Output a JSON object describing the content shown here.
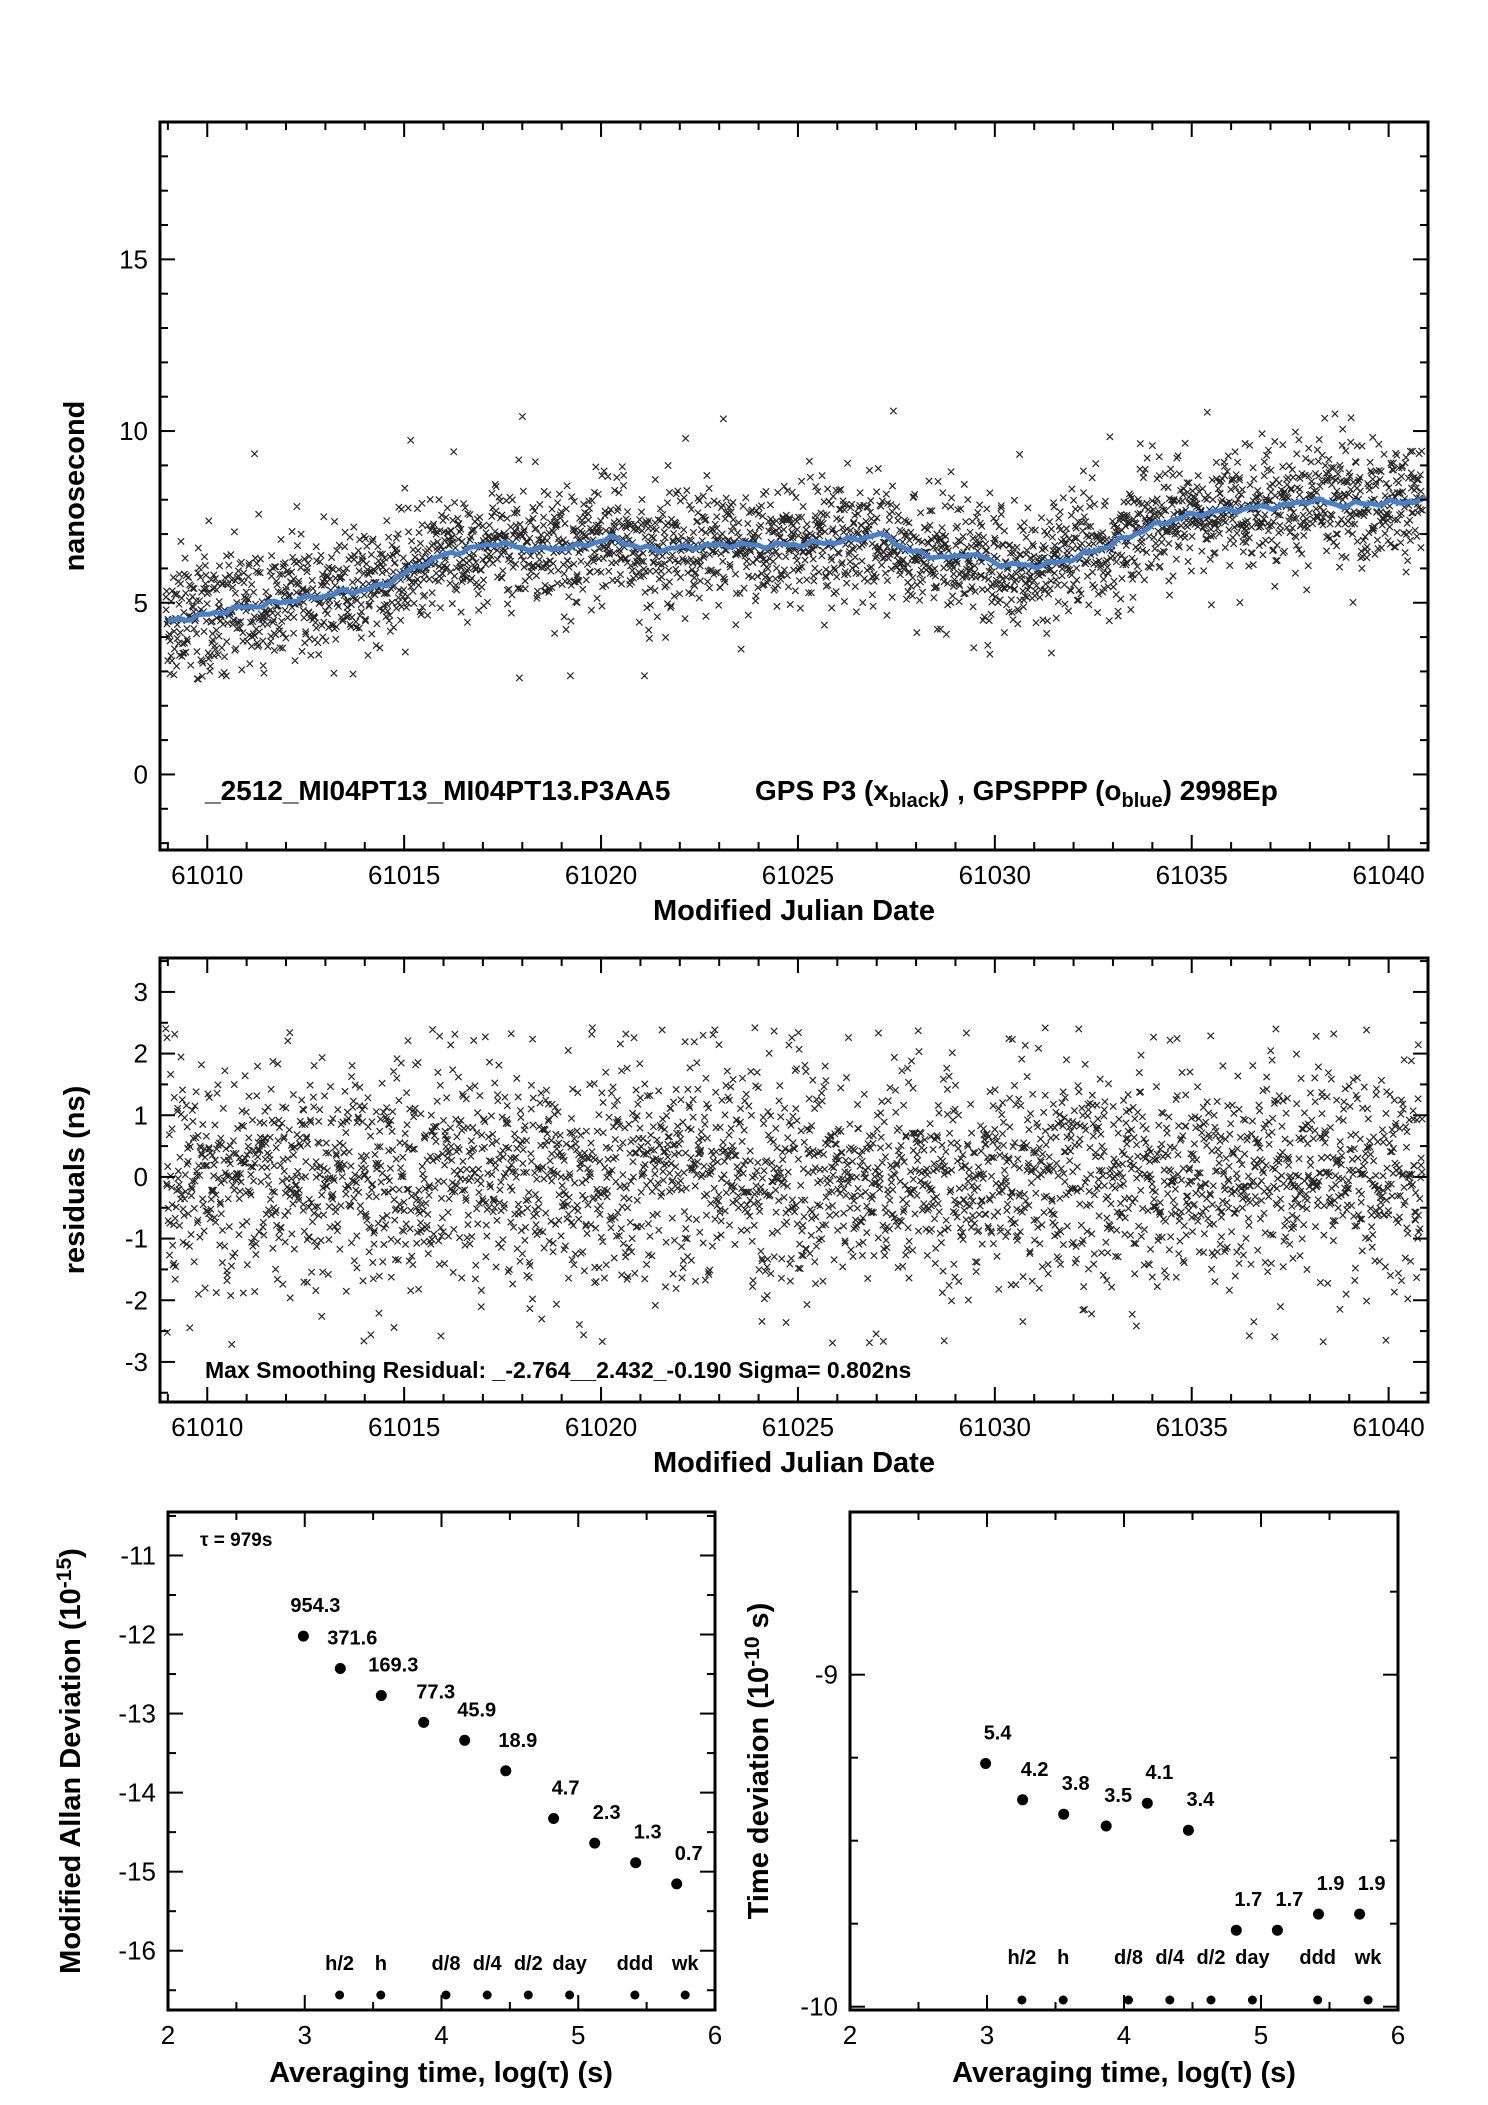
{
  "page": {
    "background": "#ffffff"
  },
  "colors": {
    "axis": "#000000",
    "scatter_marker": "#000000",
    "smoothed_line": "#4a80c8",
    "value_labels": "#ff0000",
    "deviation_dots": "#000000"
  },
  "chart_data": [
    {
      "id": "gps_comparison",
      "type": "scatter",
      "xlabel": "Modified Julian Date",
      "ylabel": "nanosecond",
      "xlim": [
        61008.8,
        61041.0
      ],
      "ylim": [
        -2.2,
        19.0
      ],
      "xticks": [
        61010,
        61015,
        61020,
        61025,
        61030,
        61035,
        61040
      ],
      "xminor_step": 1,
      "yticks": [
        0,
        5,
        10,
        15
      ],
      "yminor_step": 1,
      "annotation": {
        "dataset": "_2512_MI04PT13_MI04PT13.P3AA5",
        "series_parts": [
          {
            "text": "GPS P3 (x"
          },
          {
            "text": "black",
            "sub": true
          },
          {
            "text": ") ,  GPSPPP (o"
          },
          {
            "text": "blue",
            "sub": true
          },
          {
            "text": ")  2998Ep"
          }
        ]
      },
      "series": [
        {
          "name": "GPS P3",
          "marker": "x",
          "color": "#000000",
          "n_points": 2998,
          "sigma_ns": 0.8
        },
        {
          "name": "GPSPPP smoothed",
          "marker": "o",
          "color": "#4a80c8",
          "trend_points": [
            [
              61009.0,
              4.45
            ],
            [
              61009.5,
              4.55
            ],
            [
              61010.0,
              4.65
            ],
            [
              61010.5,
              4.78
            ],
            [
              61011.0,
              4.88
            ],
            [
              61011.5,
              4.95
            ],
            [
              61012.0,
              5.05
            ],
            [
              61012.5,
              5.12
            ],
            [
              61013.0,
              5.22
            ],
            [
              61013.5,
              5.32
            ],
            [
              61014.0,
              5.38
            ],
            [
              61014.5,
              5.52
            ],
            [
              61015.0,
              5.85
            ],
            [
              61015.5,
              6.15
            ],
            [
              61016.0,
              6.38
            ],
            [
              61016.5,
              6.52
            ],
            [
              61017.0,
              6.65
            ],
            [
              61017.3,
              6.75
            ],
            [
              61017.6,
              6.68
            ],
            [
              61018.0,
              6.6
            ],
            [
              61018.5,
              6.55
            ],
            [
              61019.0,
              6.6
            ],
            [
              61019.5,
              6.65
            ],
            [
              61020.0,
              6.82
            ],
            [
              61020.3,
              6.88
            ],
            [
              61020.7,
              6.72
            ],
            [
              61021.0,
              6.6
            ],
            [
              61021.5,
              6.55
            ],
            [
              61022.0,
              6.6
            ],
            [
              61022.5,
              6.65
            ],
            [
              61023.0,
              6.68
            ],
            [
              61023.5,
              6.7
            ],
            [
              61024.0,
              6.66
            ],
            [
              61024.5,
              6.68
            ],
            [
              61025.0,
              6.7
            ],
            [
              61025.5,
              6.74
            ],
            [
              61026.0,
              6.78
            ],
            [
              61026.5,
              6.85
            ],
            [
              61027.0,
              7.0
            ],
            [
              61027.3,
              6.88
            ],
            [
              61027.7,
              6.6
            ],
            [
              61028.0,
              6.45
            ],
            [
              61028.5,
              6.35
            ],
            [
              61029.0,
              6.3
            ],
            [
              61029.3,
              6.45
            ],
            [
              61029.7,
              6.32
            ],
            [
              61030.0,
              6.15
            ],
            [
              61030.5,
              6.1
            ],
            [
              61031.0,
              6.08
            ],
            [
              61031.5,
              6.15
            ],
            [
              61032.0,
              6.3
            ],
            [
              61032.5,
              6.5
            ],
            [
              61033.0,
              6.72
            ],
            [
              61033.5,
              6.98
            ],
            [
              61034.0,
              7.22
            ],
            [
              61034.5,
              7.42
            ],
            [
              61035.0,
              7.55
            ],
            [
              61035.5,
              7.65
            ],
            [
              61036.0,
              7.7
            ],
            [
              61036.5,
              7.75
            ],
            [
              61037.0,
              7.8
            ],
            [
              61037.5,
              7.85
            ],
            [
              61038.0,
              8.0
            ],
            [
              61038.3,
              7.95
            ],
            [
              61038.7,
              7.85
            ],
            [
              61039.0,
              7.85
            ],
            [
              61039.5,
              7.9
            ],
            [
              61040.0,
              7.9
            ],
            [
              61040.5,
              7.95
            ],
            [
              61041.0,
              8.0
            ]
          ]
        }
      ]
    },
    {
      "id": "residuals",
      "type": "scatter",
      "xlabel": "Modified Julian Date",
      "ylabel": "residuals (ns)",
      "xlim": [
        61008.8,
        61041.0
      ],
      "ylim": [
        -3.65,
        3.55
      ],
      "xticks": [
        61010,
        61015,
        61020,
        61025,
        61030,
        61035,
        61040
      ],
      "xminor_step": 1,
      "yticks": [
        -3,
        -2,
        -1,
        0,
        1,
        2,
        3
      ],
      "yminor_step": 0.5,
      "annotation": "Max Smoothing Residual: _-2.764__2.432_-0.190  Sigma= 0.802ns",
      "stats": {
        "min": -2.764,
        "max": 2.432,
        "mean": -0.19,
        "sigma_ns": 0.802
      },
      "series": [
        {
          "name": "smoothing residuals",
          "marker": "x",
          "color": "#000000",
          "n_points": 2998,
          "sigma_ns": 0.802
        }
      ]
    },
    {
      "id": "mdev",
      "type": "scatter",
      "xlabel": "Averaging time, log(τ) (s)",
      "ylabel_parts": [
        {
          "text": "Modified Allan Deviation (10"
        },
        {
          "text": "-15",
          "sup": true
        },
        {
          "text": ")"
        }
      ],
      "unit_exponent": -15,
      "xlim": [
        2,
        6
      ],
      "ylim": [
        -16.75,
        -10.45
      ],
      "xticks": [
        2,
        3,
        4,
        5,
        6
      ],
      "xminor_step": 0.5,
      "yticks": [
        -11,
        -12,
        -13,
        -14,
        -15,
        -16
      ],
      "yminor_step": 0.5,
      "tau_annotation": "τ = 979s",
      "points": [
        {
          "log_tau": 2.99,
          "value": 954.3
        },
        {
          "log_tau": 3.26,
          "value": 371.6
        },
        {
          "log_tau": 3.56,
          "value": 169.3
        },
        {
          "log_tau": 3.87,
          "value": 77.3
        },
        {
          "log_tau": 4.17,
          "value": 45.9
        },
        {
          "log_tau": 4.47,
          "value": 18.9
        },
        {
          "log_tau": 4.82,
          "value": 4.7
        },
        {
          "log_tau": 5.12,
          "value": 2.3
        },
        {
          "log_tau": 5.42,
          "value": 1.3
        },
        {
          "log_tau": 5.72,
          "value": 0.7
        }
      ],
      "time_marks": [
        {
          "label": "h/2",
          "log_tau": 3.255
        },
        {
          "label": "h",
          "log_tau": 3.556
        },
        {
          "label": "d/8",
          "log_tau": 4.033
        },
        {
          "label": "d/4",
          "log_tau": 4.334
        },
        {
          "label": "d/2",
          "log_tau": 4.635
        },
        {
          "label": "day",
          "log_tau": 4.937
        },
        {
          "label": "ddd",
          "log_tau": 5.414
        },
        {
          "label": "wk",
          "log_tau": 5.782
        }
      ]
    },
    {
      "id": "tdev",
      "type": "scatter",
      "xlabel": "Averaging time, log(τ) (s)",
      "ylabel_parts": [
        {
          "text": "Time deviation (10"
        },
        {
          "text": "-10",
          "sup": true
        },
        {
          "text": " s)"
        }
      ],
      "unit_exponent": -10,
      "xlim": [
        2,
        6
      ],
      "ylim": [
        -10.01,
        -8.51
      ],
      "xticks": [
        2,
        3,
        4,
        5,
        6
      ],
      "xminor_step": 0.5,
      "yticks": [
        -9,
        -10
      ],
      "yminor_step": 0.25,
      "points": [
        {
          "log_tau": 2.99,
          "value": 5.4
        },
        {
          "log_tau": 3.26,
          "value": 4.2
        },
        {
          "log_tau": 3.56,
          "value": 3.8
        },
        {
          "log_tau": 3.87,
          "value": 3.5
        },
        {
          "log_tau": 4.17,
          "value": 4.1
        },
        {
          "log_tau": 4.47,
          "value": 3.4
        },
        {
          "log_tau": 4.82,
          "value": 1.7
        },
        {
          "log_tau": 5.12,
          "value": 1.7
        },
        {
          "log_tau": 5.42,
          "value": 1.9
        },
        {
          "log_tau": 5.72,
          "value": 1.9
        }
      ],
      "time_marks": [
        {
          "label": "h/2",
          "log_tau": 3.255
        },
        {
          "label": "h",
          "log_tau": 3.556
        },
        {
          "label": "d/8",
          "log_tau": 4.033
        },
        {
          "label": "d/4",
          "log_tau": 4.334
        },
        {
          "label": "d/2",
          "log_tau": 4.635
        },
        {
          "label": "day",
          "log_tau": 4.937
        },
        {
          "label": "ddd",
          "log_tau": 5.414
        },
        {
          "label": "wk",
          "log_tau": 5.782
        }
      ]
    }
  ]
}
